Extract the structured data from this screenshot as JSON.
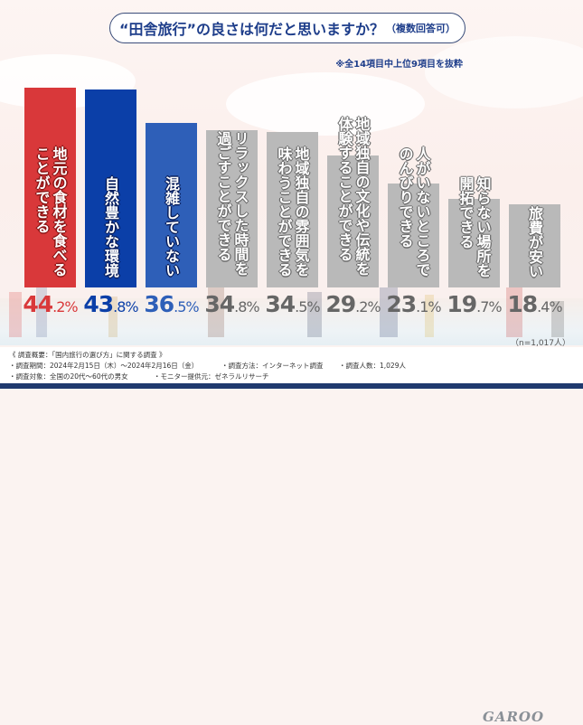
{
  "header": {
    "question": "“田舎旅行”の良さは何だと思いますか？",
    "question_suffix": "（複数回答可）",
    "note": "※全14項目中上位9項目を抜粋"
  },
  "chart_data": {
    "type": "bar",
    "title": "“田舎旅行”の良さは何だと思いますか？（複数回答可）",
    "subtitle": "※全14項目中上位9項目を抜粋",
    "unit": "%",
    "categories": [
      "地元の食材を食べることができる",
      "自然豊かな環境",
      "混雑していない",
      "リラックスした時間を過ごすことができる",
      "地域独自の雰囲気を味わうことができる",
      "地域独自の文化や伝統を体験することができる",
      "人がいないところでのんびりできる",
      "知らない場所を開拓できる",
      "旅費が安い"
    ],
    "label_lines": [
      [
        "地元の食材を食べる",
        "ことができる"
      ],
      [
        "自然豊かな環境"
      ],
      [
        "混雑していない"
      ],
      [
        "リラックスした時間を",
        "過ごすことができる"
      ],
      [
        "地域独自の雰囲気を",
        "味わうことができる"
      ],
      [
        "地域独自の文化や伝統を",
        "体験することができる"
      ],
      [
        "人がいないところで",
        "のんびりできる"
      ],
      [
        "知らない場所を",
        "開拓できる"
      ],
      [
        "旅費が安い"
      ]
    ],
    "values": [
      44.2,
      43.8,
      36.5,
      34.8,
      34.5,
      29.2,
      23.1,
      19.7,
      18.4
    ],
    "value_labels": [
      {
        "int": "44",
        "dec": ".2%"
      },
      {
        "int": "43",
        "dec": ".8%"
      },
      {
        "int": "36",
        "dec": ".5%"
      },
      {
        "int": "34",
        "dec": ".8%"
      },
      {
        "int": "34",
        "dec": ".5%"
      },
      {
        "int": "29",
        "dec": ".2%"
      },
      {
        "int": "23",
        "dec": ".1%"
      },
      {
        "int": "19",
        "dec": ".7%"
      },
      {
        "int": "18",
        "dec": ".4%"
      }
    ],
    "bar_colors": [
      "#d9383a",
      "#0b3fa8",
      "#2e5fb8",
      "#b9b9b9",
      "#b9b9b9",
      "#b9b9b9",
      "#b9b9b9",
      "#b9b9b9",
      "#b9b9b9"
    ],
    "value_colors": [
      "#d9383a",
      "#0b3fa8",
      "#2e5fb8",
      "#666666",
      "#666666",
      "#666666",
      "#666666",
      "#666666",
      "#666666"
    ],
    "label_styles": [
      "red",
      "blue",
      "blue",
      "gray",
      "gray",
      "gray",
      "gray",
      "gray",
      "gray"
    ],
    "ylim": [
      0,
      50
    ],
    "grid": false,
    "legend": "none",
    "xlabel": "",
    "ylabel": ""
  },
  "sample_size": "（n=1,017人）",
  "footer": {
    "overview": "《 調査概要：「国内旅行の選び方」に関する調査 》",
    "period": "・調査期間：2024年2月15日（木）～2024年2月16日（金）",
    "method": "・調査方法：インターネット調査",
    "count": "・調査人数：1,029人",
    "target": "・調査対象：全国の20代～60代の男女",
    "provider": "・モニター提供元：ゼネラルリサーチ",
    "logo": "GAROO"
  }
}
